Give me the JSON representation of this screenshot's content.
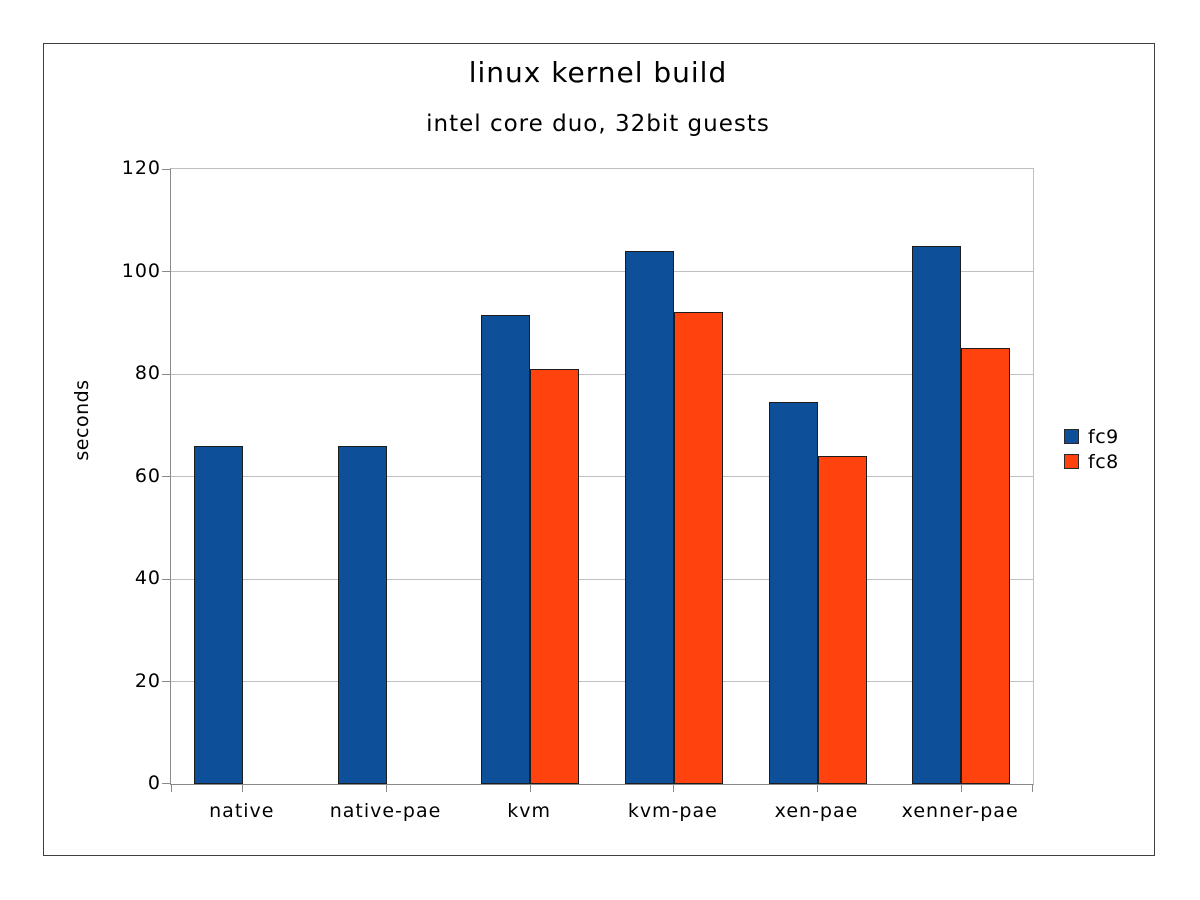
{
  "chart_data": {
    "type": "bar",
    "title": "linux kernel build",
    "subtitle": "intel core duo, 32bit guests",
    "ylabel": "seconds",
    "xlabel": "",
    "categories": [
      "native",
      "native-pae",
      "kvm",
      "kvm-pae",
      "xen-pae",
      "xenner-pae"
    ],
    "series": [
      {
        "name": "fc9",
        "color": "#0e4f99",
        "values": [
          66,
          66,
          91.5,
          104,
          74.5,
          105
        ]
      },
      {
        "name": "fc8",
        "color": "#ff420e",
        "values": [
          null,
          null,
          81,
          92,
          64,
          85
        ]
      }
    ],
    "ylim": [
      0,
      120
    ],
    "yticks": [
      0,
      20,
      40,
      60,
      80,
      100,
      120
    ],
    "grid": true,
    "legend_position": "right",
    "legend_entries": [
      "fc9",
      "fc8"
    ]
  }
}
